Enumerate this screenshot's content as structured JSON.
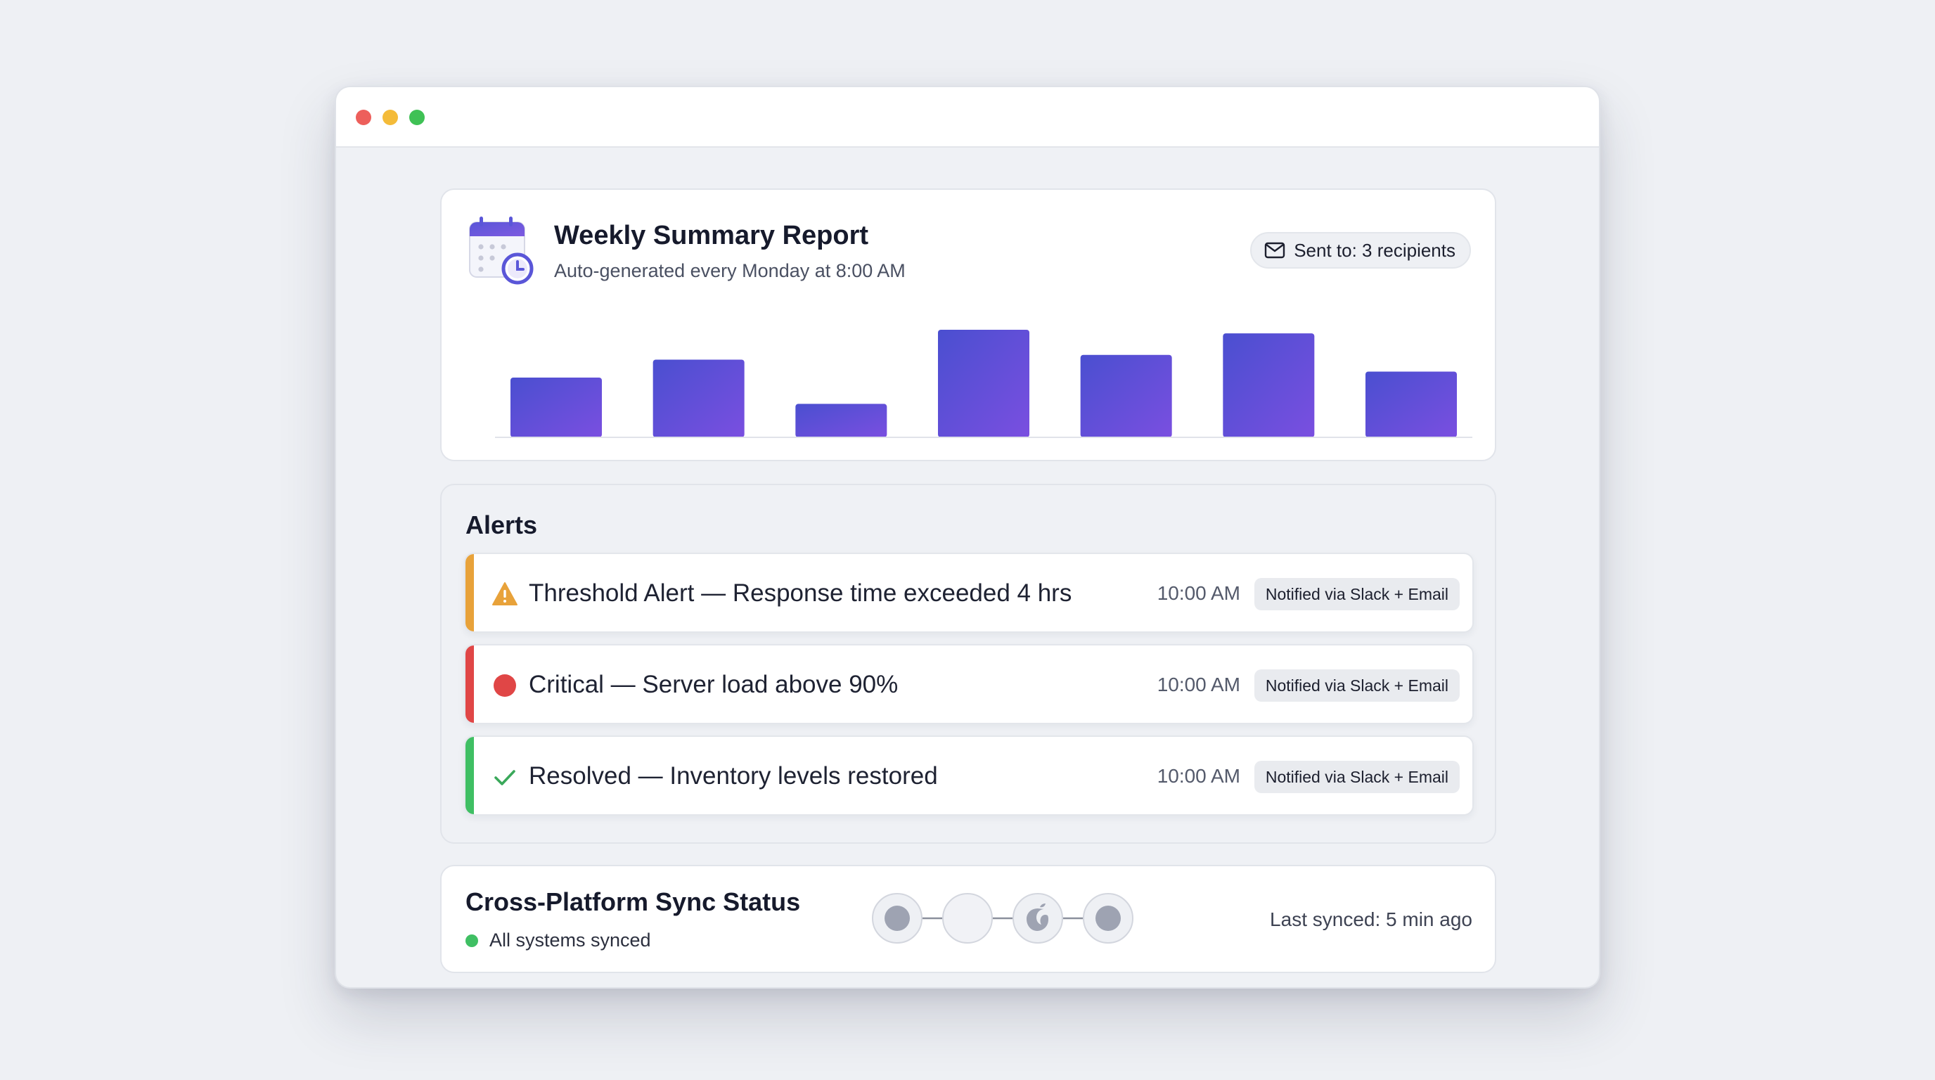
{
  "report": {
    "title": "Weekly Summary Report",
    "subtitle": "Auto-generated every Monday at 8:00 AM",
    "sent_label": "Sent to: 3 recipients",
    "icon": "calendar-clock-icon"
  },
  "chart_data": {
    "type": "bar",
    "categories": [
      "",
      "",
      "",
      "",
      "",
      "",
      ""
    ],
    "values": [
      50,
      65,
      28,
      90,
      69,
      87,
      55
    ],
    "ylim": [
      0,
      100
    ],
    "grid": false,
    "colors": [
      "#4a4fd0",
      "#7a4fe0"
    ]
  },
  "alerts": {
    "title": "Alerts",
    "items": [
      {
        "text": "Threshold Alert — Response time exceeded 4 hrs",
        "time": "10:00 AM",
        "badge": "Notified via Slack + Email",
        "color": "#e8a23a",
        "icon": "warning-icon"
      },
      {
        "text": "Critical — Server load above 90%",
        "time": "10:00 AM",
        "badge": "Notified via Slack + Email",
        "color": "#e04646",
        "icon": "critical-dot-icon"
      },
      {
        "text": "Resolved — Inventory levels restored",
        "time": "10:00 AM",
        "badge": "Notified via Slack + Email",
        "color": "#3fbf63",
        "icon": "check-icon"
      }
    ]
  },
  "sync": {
    "title": "Cross-Platform Sync Status",
    "status": "All systems synced",
    "last_synced": "Last synced: 5 min ago",
    "platform_icons": [
      "platform-dot-icon",
      "platform-blank-icon",
      "apple-icon",
      "platform-dot-icon"
    ]
  }
}
